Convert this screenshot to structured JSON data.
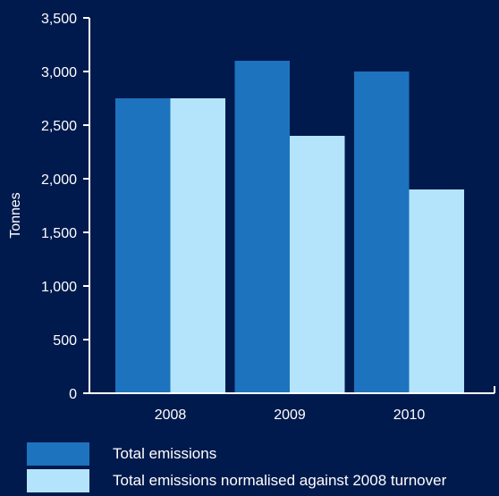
{
  "chart_data": {
    "type": "bar",
    "categories": [
      "2008",
      "2009",
      "2010"
    ],
    "series": [
      {
        "name": "Total emissions",
        "values": [
          2750,
          3100,
          3000
        ],
        "color": "#1e73be"
      },
      {
        "name": "Total emissions normalised against 2008 turnover",
        "values": [
          2750,
          2400,
          1900
        ],
        "color": "#b3e4fb"
      }
    ],
    "ylabel": "Tonnes",
    "ylim": [
      0,
      3500
    ],
    "yticks": [
      "0",
      "500",
      "1,000",
      "1,500",
      "2,000",
      "2,500",
      "3,000",
      "3,500"
    ],
    "ytick_values": [
      0,
      500,
      1000,
      1500,
      2000,
      2500,
      3000,
      3500
    ],
    "grid": false,
    "legend_position": "bottom"
  },
  "colors": {
    "background": "#001a4d",
    "axis": "#ffffff",
    "text": "#ffffff"
  }
}
